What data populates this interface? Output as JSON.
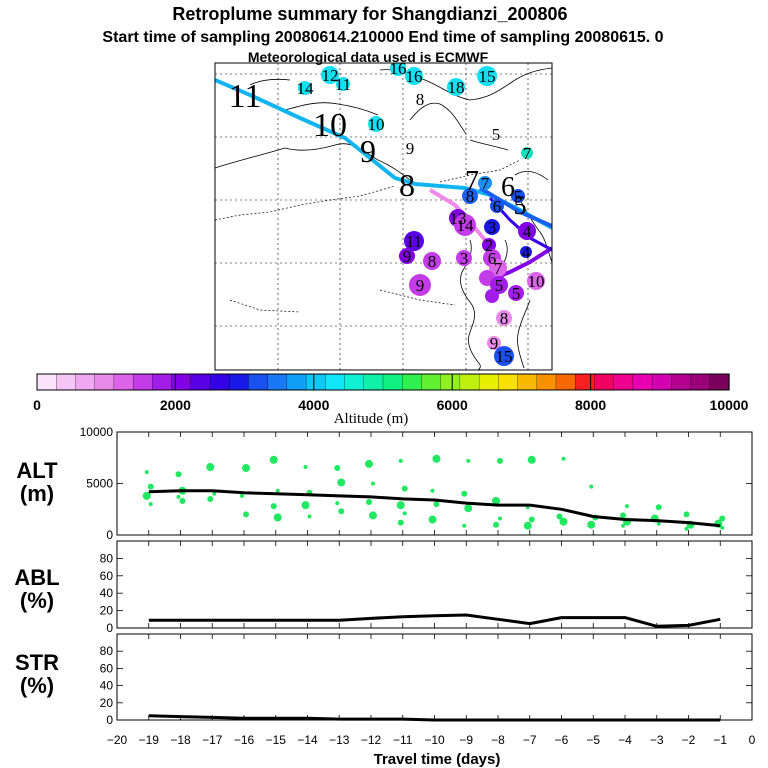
{
  "title": "Retroplume summary for Shangdianzi_200806",
  "subtitle": "Start time of sampling 20080614.210000     End time of sampling 20080615.     0",
  "met_note": "Meteorological data used is ECMWF",
  "colorbar": {
    "label": "Altitude (m)",
    "ticks": [
      "0",
      "2000",
      "4000",
      "6000",
      "8000",
      "10000"
    ],
    "colors": [
      "#fbe4fb",
      "#f6c6f6",
      "#f0a8f0",
      "#e88ae8",
      "#dc64e8",
      "#c43ce8",
      "#a21ee8",
      "#8200e8",
      "#5a00e6",
      "#3400e6",
      "#1a1ae8",
      "#1a50f0",
      "#1a78f4",
      "#10a0f8",
      "#10c8f8",
      "#10e6f8",
      "#10f0d2",
      "#10f0a8",
      "#10f080",
      "#30f050",
      "#60f030",
      "#90f020",
      "#c0f010",
      "#e8f000",
      "#f8e000",
      "#f8b800",
      "#f89000",
      "#f86800",
      "#f82020",
      "#f00060",
      "#f00090",
      "#e600b0",
      "#d200b0",
      "#b40090",
      "#9a0078",
      "#7a005a"
    ]
  },
  "map": {
    "path_labels": [
      {
        "text": "11",
        "size": 34
      },
      {
        "text": "10",
        "size": 34
      },
      {
        "text": "9",
        "size": 32
      },
      {
        "text": "8",
        "size": 32
      },
      {
        "text": "7",
        "size": 28
      },
      {
        "text": "6",
        "size": 28
      },
      {
        "text": "5",
        "size": 26
      }
    ],
    "cluster_labels": [
      "12",
      "14",
      "11",
      "16",
      "16",
      "15",
      "18",
      "8",
      "10",
      "9",
      "5",
      "7",
      "7",
      "8",
      "5",
      "6",
      "13",
      "14",
      "3",
      "11",
      "9",
      "8",
      "2",
      "4",
      "3",
      "6",
      "7",
      "10",
      "9",
      "4",
      "5",
      "5",
      "8",
      "9",
      "15"
    ]
  },
  "panels": {
    "alt": {
      "label": "ALT",
      "unit": "(m)",
      "yticks": [
        "10000",
        "5000",
        "0"
      ]
    },
    "abl": {
      "label": "ABL",
      "unit": "(%)",
      "yticks": [
        "80",
        "60",
        "40",
        "20",
        "0"
      ]
    },
    "str": {
      "label": "STR",
      "unit": "(%)",
      "yticks": [
        "80",
        "60",
        "40",
        "20",
        "0"
      ]
    }
  },
  "xaxis": {
    "label": "Travel time (days)",
    "ticks": [
      "−20",
      "−19",
      "−18",
      "−17",
      "−16",
      "−15",
      "−14",
      "−13",
      "−12",
      "−11",
      "−10",
      "−9",
      "−8",
      "−7",
      "−6",
      "−5",
      "−4",
      "−3",
      "−2",
      "−1",
      "0"
    ]
  },
  "chart_data": [
    {
      "type": "line",
      "title": "ALT (m)",
      "xlabel": "Travel time (days)",
      "ylabel": "Altitude (m)",
      "xlim": [
        -20,
        0
      ],
      "ylim": [
        0,
        10000
      ],
      "x": [
        -19,
        -18,
        -17,
        -16,
        -15,
        -14,
        -13,
        -12,
        -11,
        -10,
        -9,
        -8,
        -7,
        -6,
        -5,
        -4,
        -3,
        -2,
        -1
      ],
      "series": [
        {
          "name": "mean altitude",
          "color": "#000000",
          "values": [
            4200,
            4300,
            4300,
            4100,
            4000,
            3900,
            3800,
            3700,
            3500,
            3400,
            3100,
            2900,
            2900,
            2500,
            1800,
            1500,
            1400,
            1200,
            900
          ]
        },
        {
          "name": "cluster altitudes",
          "color": "#20e860",
          "points": [
            [
              -19,
              6100
            ],
            [
              -19,
              4700
            ],
            [
              -19,
              3800
            ],
            [
              -19,
              3000
            ],
            [
              -18,
              5900
            ],
            [
              -18,
              4300
            ],
            [
              -18,
              3700
            ],
            [
              -18,
              3300
            ],
            [
              -17,
              6600
            ],
            [
              -17,
              4000
            ],
            [
              -17,
              3500
            ],
            [
              -16,
              6500
            ],
            [
              -16,
              3800
            ],
            [
              -16,
              2000
            ],
            [
              -15,
              7300
            ],
            [
              -15,
              4300
            ],
            [
              -15,
              2800
            ],
            [
              -15,
              1700
            ],
            [
              -14,
              6600
            ],
            [
              -14,
              4100
            ],
            [
              -14,
              2900
            ],
            [
              -14,
              1800
            ],
            [
              -13,
              6500
            ],
            [
              -13,
              5100
            ],
            [
              -13,
              3100
            ],
            [
              -13,
              2300
            ],
            [
              -12,
              6900
            ],
            [
              -12,
              5000
            ],
            [
              -12,
              3200
            ],
            [
              -12,
              1900
            ],
            [
              -11,
              7200
            ],
            [
              -11,
              4500
            ],
            [
              -11,
              2900
            ],
            [
              -11,
              2100
            ],
            [
              -11,
              1200
            ],
            [
              -10,
              7400
            ],
            [
              -10,
              4300
            ],
            [
              -10,
              3000
            ],
            [
              -10,
              1500
            ],
            [
              -9,
              7200
            ],
            [
              -9,
              4000
            ],
            [
              -9,
              2600
            ],
            [
              -9,
              900
            ],
            [
              -8,
              7200
            ],
            [
              -8,
              3300
            ],
            [
              -8,
              1600
            ],
            [
              -8,
              1000
            ],
            [
              -7,
              7300
            ],
            [
              -7,
              2700
            ],
            [
              -7,
              1500
            ],
            [
              -7,
              900
            ],
            [
              -6,
              7400
            ],
            [
              -6,
              1800
            ],
            [
              -6,
              1300
            ],
            [
              -5,
              4700
            ],
            [
              -5,
              1700
            ],
            [
              -5,
              1000
            ],
            [
              -4,
              2800
            ],
            [
              -4,
              1900
            ],
            [
              -4,
              1300
            ],
            [
              -4,
              900
            ],
            [
              -3,
              2700
            ],
            [
              -3,
              1600
            ],
            [
              -3,
              1100
            ],
            [
              -2,
              2000
            ],
            [
              -2,
              1000
            ],
            [
              -2,
              600
            ],
            [
              -1,
              1600
            ],
            [
              -1,
              1100
            ],
            [
              -1,
              700
            ]
          ]
        }
      ]
    },
    {
      "type": "line",
      "title": "ABL (%)",
      "xlabel": "Travel time (days)",
      "ylabel": "ABL (%)",
      "xlim": [
        -20,
        0
      ],
      "ylim": [
        0,
        100
      ],
      "x": [
        -19,
        -18,
        -17,
        -16,
        -15,
        -14,
        -13,
        -12,
        -11,
        -10,
        -9,
        -8,
        -7,
        -6,
        -5,
        -4,
        -3,
        -2,
        -1
      ],
      "series": [
        {
          "name": "ABL",
          "color": "#000000",
          "values": [
            9,
            9,
            9,
            9,
            9,
            9,
            9,
            11,
            13,
            14,
            15,
            10,
            5,
            12,
            12,
            12,
            2,
            3,
            10
          ]
        }
      ]
    },
    {
      "type": "line",
      "title": "STR (%)",
      "xlabel": "Travel time (days)",
      "ylabel": "STR (%)",
      "xlim": [
        -20,
        0
      ],
      "ylim": [
        0,
        100
      ],
      "x": [
        -19,
        -18,
        -17,
        -16,
        -15,
        -14,
        -13,
        -12,
        -11,
        -10,
        -9,
        -8,
        -7,
        -6,
        -5,
        -4,
        -3,
        -2,
        -1
      ],
      "series": [
        {
          "name": "STR",
          "color": "#000000",
          "values": [
            5,
            4,
            3,
            2,
            2,
            2,
            1,
            1,
            1,
            0,
            0,
            0,
            0,
            0,
            0,
            0,
            0,
            0,
            0
          ]
        }
      ]
    }
  ]
}
